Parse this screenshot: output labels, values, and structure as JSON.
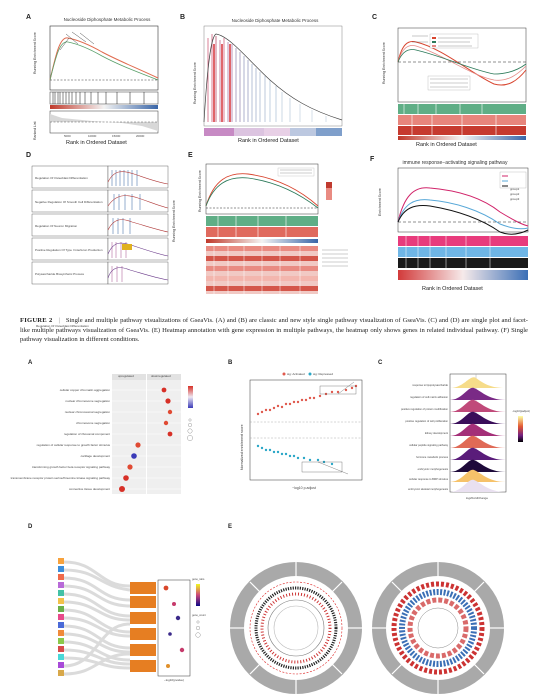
{
  "figure": {
    "panels_top": {
      "A": {
        "letter": "A",
        "title": "Nucleoside Diphosphate Metabolic Process",
        "ylabel_top": "Running Enrichment Score",
        "ylabel_bottom": "Ranked List",
        "xlabel": "Rank in Ordered Dataset",
        "ticks": [
          "5000",
          "10000",
          "15000",
          "20000"
        ]
      },
      "B": {
        "letter": "B",
        "title": "Nucleoside Diphosphate Metabolic Process",
        "ylabel": "Running Enrichment Score",
        "xlabel": "Rank in Ordered Dataset"
      },
      "C": {
        "letter": "C",
        "ylabel": "Running Enrichment Score",
        "xlabel": "Rank in Ordered Dataset",
        "legend_title": "Term Name"
      },
      "D": {
        "letter": "D",
        "ylabel": "Running Enrichment Score",
        "terms": [
          "Regulation Of Osteoblast Differentiation",
          "Negative Regulation Of Smooth Cell Differentiation",
          "Regulation Of Neuron Migration",
          "Positive Regulation Of Type I Interferon Production",
          "Polysaccharide Biosynthetic Process"
        ]
      },
      "E": {
        "letter": "E",
        "ylabel": "Running Enrichment Score"
      },
      "F": {
        "letter": "F",
        "title": "immune response−activating signaling pathway",
        "ylabel": "Enrichment Score",
        "xlabel": "Rank in Ordered Dataset",
        "legend": [
          "group1",
          "group2",
          "group3"
        ]
      }
    },
    "caption": {
      "label": "FIGURE 2",
      "sep": "|",
      "text": "Single and multiple pathway visualizations of GseaVis. (A) and (B) are classic and new style single pathway visualization of GseaVis. (C) and (D) are single plot and facet-like multiple pathways visualization of GseaVis. (E) Heatmap annotation with gene expression in multiple pathways, the heatmap only shows genes in related individual pathway. (F) Single pathway visualization in different conditions."
    },
    "panels_bottom": {
      "A": {
        "letter": "A",
        "facets": [
          "upregulated",
          "downregulated"
        ],
        "terms": [
          "cellular copper chromatin aggregation",
          "nuclear chromosome segregation",
          "nuclear chromosomal segregation",
          "chromosome segregation",
          "regulation of ribosomal component",
          "regulation of cellular response to growth factor stimulus",
          "cartilage development",
          "transforming growth factor beta receptor signaling pathway",
          "transmembrane receptor protein serine/threonine kinase signaling pathway",
          "connective tissue development"
        ]
      },
      "B": {
        "letter": "B",
        "legend": [
          "sig: Activated",
          "sig: Repressed"
        ],
        "ylabel": "Normalized enrichment score",
        "xlabel": "−log10 p.adjust"
      },
      "C": {
        "letter": "C",
        "xlabel": "log2FoldChange",
        "legend_title": "−log10(padjust)",
        "terms": [
          "response to lipopolysaccharide",
          "regulation of cell matrix adhesion",
          "positive regulation of protein modification",
          "positive regulation of cell proliferation",
          "kidney development",
          "cellular peptide signaling pathway",
          "hormone metabolic process",
          "embryonic morphogenesis",
          "cellular response to BMP stimulus",
          "embryonic skeletal morphogenesis"
        ]
      },
      "D": {
        "letter": "D",
        "xlabel": "−log10(pvalue)",
        "legend_title": "gene_ratio",
        "count_title": "gene_count"
      },
      "E": {
        "letter": "E"
      }
    }
  }
}
